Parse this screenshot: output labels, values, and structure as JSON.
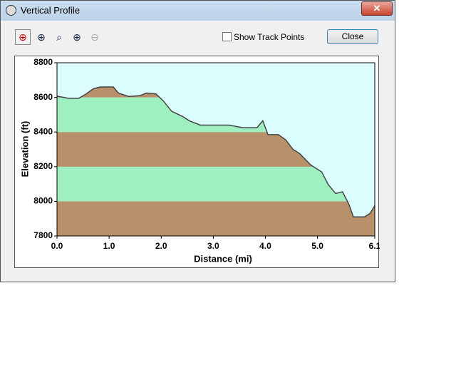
{
  "window": {
    "title": "Vertical Profile",
    "checkbox_label": "Show Track Points",
    "close_button": "Close"
  },
  "chart_data": {
    "type": "area",
    "x_label": "Distance   (mi)",
    "y_label": "Elevation (ft)",
    "x": [
      0,
      0.22,
      0.42,
      0.56,
      0.7,
      0.83,
      1.08,
      1.18,
      1.38,
      1.59,
      1.72,
      1.9,
      2.04,
      2.2,
      2.41,
      2.54,
      2.75,
      3.02,
      3.3,
      3.57,
      3.84,
      3.95,
      4.05,
      4.25,
      4.39,
      4.53,
      4.66,
      4.87,
      5.08,
      5.21,
      5.35,
      5.48,
      5.6,
      5.69,
      5.9,
      6.01,
      6.1
    ],
    "values": [
      8607,
      8595,
      8595,
      8620,
      8650,
      8660,
      8660,
      8625,
      8605,
      8610,
      8625,
      8620,
      8580,
      8520,
      8490,
      8465,
      8440,
      8440,
      8440,
      8425,
      8425,
      8465,
      8385,
      8385,
      8355,
      8300,
      8275,
      8210,
      8170,
      8095,
      8045,
      8055,
      7985,
      7910,
      7910,
      7930,
      7975
    ],
    "xlim": [
      0,
      6.1
    ],
    "ylim": [
      7800,
      8800
    ],
    "xticks": [
      {
        "value": 0,
        "label": "0.0"
      },
      {
        "value": 1,
        "label": "1.0"
      },
      {
        "value": 2,
        "label": "2.0"
      },
      {
        "value": 3,
        "label": "3.0"
      },
      {
        "value": 4,
        "label": "4.0"
      },
      {
        "value": 5,
        "label": "5.0"
      },
      6.1
    ],
    "yticks": [
      7800,
      8000,
      8200,
      8400,
      8600,
      8800
    ],
    "band_colors": [
      "#b8916a",
      "#9ff0c0"
    ],
    "background": "#dcfdfd",
    "line_color": "#444444"
  }
}
